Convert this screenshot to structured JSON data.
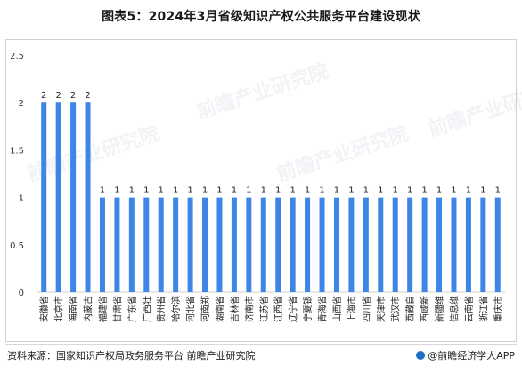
{
  "title": "图表5：2024年3月省级知识产权公共服务平台建设现状",
  "chart_data": {
    "type": "bar",
    "categories": [
      "安徽省",
      "北京市",
      "海南省",
      "内蒙古",
      "福建省",
      "甘肃省",
      "广东省",
      "广西壮",
      "贵州省",
      "哈尔滨",
      "河北省",
      "河南郑",
      "湖南省",
      "吉林省",
      "济南市",
      "江苏省",
      "江西省",
      "辽宁省",
      "宁夏银",
      "青海省",
      "山西省",
      "上海市",
      "四川省",
      "天津市",
      "武汉市",
      "西藏自",
      "西咸新",
      "新疆维",
      "信息维",
      "云南省",
      "浙江省",
      "重庆市"
    ],
    "values": [
      2,
      2,
      2,
      2,
      1,
      1,
      1,
      1,
      1,
      1,
      1,
      1,
      1,
      1,
      1,
      1,
      1,
      1,
      1,
      1,
      1,
      1,
      1,
      1,
      1,
      1,
      1,
      1,
      1,
      1,
      1,
      1
    ],
    "ylim": [
      0,
      2.5
    ],
    "yticks": [
      "0",
      "0.5",
      "1",
      "1.5",
      "2",
      "2.5"
    ],
    "color": "#3d86e6",
    "grid": false
  },
  "watermark": "前瞻产业研究院",
  "footer": {
    "source": "资料来源：国家知识产权局政务服务平台 前瞻产业研究院",
    "brand": "@前瞻经济学人APP"
  }
}
